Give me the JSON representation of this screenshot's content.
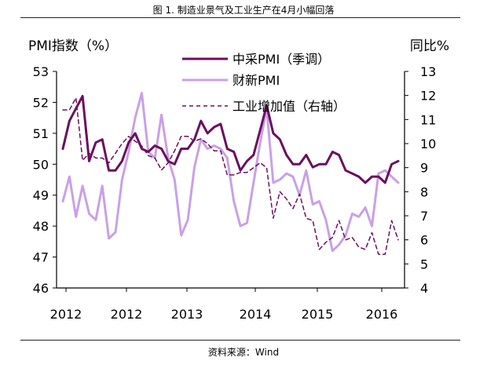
{
  "figure": {
    "title": "图 1. 制造业景气及工业生产在4月小幅回落",
    "source": "资料来源：Wind"
  },
  "chart_data": {
    "type": "line",
    "left_axis_title": "PMI指数（%）",
    "right_axis_title": "同比%",
    "left_ylim": [
      46,
      53
    ],
    "right_ylim": [
      4,
      13
    ],
    "left_ticks": [
      46,
      47,
      48,
      49,
      50,
      51,
      52,
      53
    ],
    "right_ticks": [
      4,
      5,
      6,
      7,
      8,
      9,
      10,
      11,
      12,
      13
    ],
    "x_tick_labels": [
      "2012",
      "2012",
      "2013",
      "2014",
      "2015",
      "2016"
    ],
    "legend_position": "top-center",
    "colors": {
      "caixin_official": "#6b0f5e",
      "caixin": "#c9a0e8",
      "industrial": "#6b0f5e"
    },
    "series": [
      {
        "name": "中采PMI（季调）",
        "axis": "left",
        "style": "solid",
        "values": [
          50.5,
          51.4,
          51.8,
          52.2,
          50.1,
          50.7,
          50.8,
          49.8,
          49.8,
          50.1,
          50.7,
          51.0,
          50.5,
          50.4,
          50.6,
          50.5,
          50.1,
          50.0,
          50.5,
          50.5,
          50.8,
          51.4,
          51.0,
          51.2,
          51.3,
          50.5,
          50.4,
          49.8,
          50.1,
          50.3,
          51.1,
          51.9,
          51.0,
          50.8,
          50.3,
          50.0,
          50.0,
          50.3,
          49.9,
          50.0,
          50.0,
          50.4,
          50.3,
          49.8,
          49.7,
          49.6,
          49.4,
          49.6,
          49.6,
          49.4,
          50.0,
          50.1
        ]
      },
      {
        "name": "财新PMI",
        "axis": "left",
        "style": "solid",
        "values": [
          48.8,
          49.6,
          48.3,
          49.3,
          48.4,
          48.2,
          49.3,
          47.6,
          47.8,
          49.5,
          50.4,
          51.5,
          52.3,
          50.4,
          50.2,
          51.6,
          50.2,
          49.5,
          47.7,
          48.2,
          49.9,
          50.8,
          50.5,
          50.6,
          50.5,
          50.2,
          48.8,
          48.0,
          48.1,
          49.4,
          50.7,
          51.8,
          49.4,
          49.5,
          49.7,
          49.6,
          49.0,
          49.8,
          48.7,
          48.8,
          48.2,
          47.2,
          47.4,
          47.7,
          48.4,
          48.3,
          48.6,
          48.0,
          49.7,
          49.8,
          49.6,
          49.4
        ]
      },
      {
        "name": "工业增加值（右轴）",
        "axis": "right",
        "style": "dashed",
        "values": [
          11.4,
          11.4,
          11.9,
          9.3,
          9.6,
          9.4,
          9.4,
          9.2,
          9.6,
          10.0,
          10.3,
          10.1,
          9.9,
          9.5,
          9.4,
          8.9,
          9.2,
          9.7,
          10.3,
          10.3,
          10.1,
          10.2,
          10.0,
          9.7,
          9.7,
          8.7,
          8.7,
          8.8,
          8.8,
          9.0,
          9.2,
          9.0,
          6.9,
          8.0,
          7.7,
          7.3,
          7.9,
          6.9,
          6.8,
          5.6,
          5.9,
          6.1,
          6.8,
          6.0,
          6.1,
          5.7,
          5.6,
          6.3,
          5.4,
          5.4,
          6.8,
          6.0
        ]
      }
    ]
  }
}
